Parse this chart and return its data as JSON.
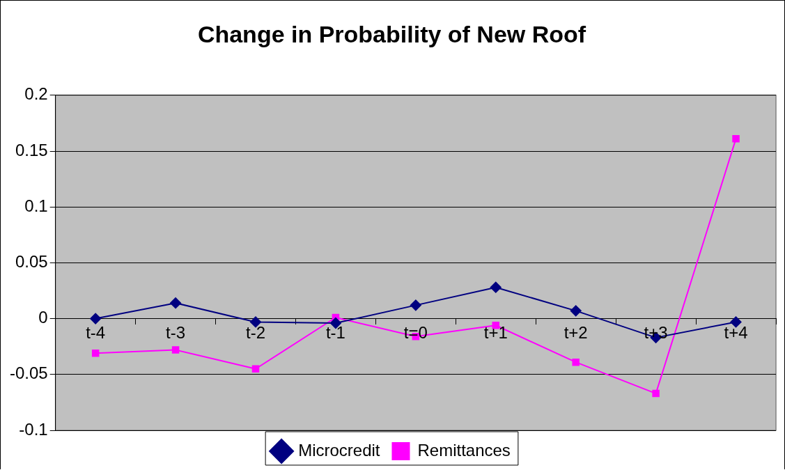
{
  "chart_data": {
    "type": "line",
    "title": "Change in Probability of New Roof",
    "categories": [
      "t-4",
      "t-3",
      "t-2",
      "t-1",
      "t=0",
      "t+1",
      "t+2",
      "t+3",
      "t+4"
    ],
    "series": [
      {
        "name": "Microcredit",
        "color": "#000080",
        "marker": "diamond",
        "values": [
          0,
          0.014,
          -0.003,
          -0.004,
          0.012,
          0.028,
          0.007,
          -0.017,
          -0.003
        ]
      },
      {
        "name": "Remittances",
        "color": "#ff00ff",
        "marker": "square",
        "values": [
          -0.031,
          -0.028,
          -0.045,
          0.001,
          -0.016,
          -0.006,
          -0.039,
          -0.067,
          0.161
        ]
      }
    ],
    "ylim": [
      -0.1,
      0.2
    ],
    "yticks": [
      -0.1,
      -0.05,
      0,
      0.05,
      0.1,
      0.15,
      0.2
    ],
    "grid": "y",
    "legend": "bottom"
  }
}
